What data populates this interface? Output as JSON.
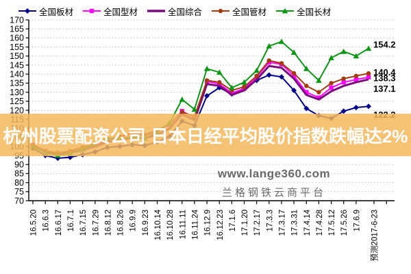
{
  "banner": {
    "text": "杭州股票配资公司 日本日经平均股价指数跌幅达2%",
    "bg_color": "rgba(243,184,88,0.84)"
  },
  "watermark": {
    "line1": "www.lange360.com",
    "line2": "兰格钢铁云商平台"
  },
  "chart_data": {
    "type": "line",
    "title": "",
    "xlabel": "",
    "ylabel": "",
    "ylim": [
      70,
      170
    ],
    "ytick_step": 5,
    "grid": "horizontal-dotted",
    "legend_position": "top",
    "prediction_label": "预测2017-6-23",
    "categories": [
      "16.5.20",
      "16.6.3",
      "16.6.17",
      "16.7.1",
      "16.7.15",
      "16.7.29",
      "16.8.12",
      "16.8.26",
      "16.9.9",
      "16.9.23",
      "16.10.14",
      "16.10.28",
      "16.11.11",
      "16.11.24",
      "16.12.9",
      "16.12.23",
      "17.1.6",
      "17.1.20",
      "17.2.17",
      "17.3.3",
      "17.3.17",
      "17.3.31",
      "17.4.14",
      "17.4.28",
      "17.5.12",
      "17.5.26",
      "17.6.9",
      "预测2017-6-23"
    ],
    "series": [
      {
        "name": "全国板材",
        "color": "#00008B",
        "marker": "diamond",
        "values": [
          99,
          95,
          93.5,
          94,
          95.5,
          97,
          99.5,
          100,
          101,
          100.5,
          102.5,
          105.5,
          114,
          111.5,
          128,
          132.5,
          129,
          132,
          136.5,
          139.5,
          138.5,
          131,
          121,
          117,
          115.5,
          119.5,
          121.5,
          122.2
        ]
      },
      {
        "name": "全国型材",
        "color": "#FF00FF",
        "marker": "square",
        "values": [
          101,
          97.5,
          96,
          97,
          98.5,
          100.5,
          103.5,
          105,
          107,
          106,
          108.5,
          112,
          119.5,
          116,
          136,
          134.5,
          129.5,
          132,
          138.5,
          146.5,
          145.5,
          139,
          130,
          127,
          132.5,
          135.5,
          137,
          138.3
        ]
      },
      {
        "name": "全国综合",
        "color": "#7B0A7B",
        "marker": "none",
        "values": [
          100.5,
          97,
          95.5,
          96.5,
          98,
          100,
          102.5,
          103.5,
          105,
          104.5,
          106.5,
          110,
          118,
          114.5,
          134.5,
          133.5,
          128.5,
          131,
          137,
          144.5,
          143.5,
          137.5,
          128.5,
          126,
          130.5,
          133.5,
          135.5,
          137.1
        ]
      },
      {
        "name": "全国管材",
        "color": "#A23B12",
        "marker": "circle",
        "values": [
          100.5,
          97.5,
          96.5,
          97.5,
          99.5,
          101.5,
          104,
          105.5,
          107.5,
          106.5,
          109,
          112.5,
          119,
          116.5,
          136.5,
          135.5,
          131,
          133,
          139,
          147.5,
          146,
          140.5,
          133.5,
          130,
          135,
          137.5,
          139,
          140.4
        ]
      },
      {
        "name": "全国长材",
        "color": "#0B9613",
        "marker": "triangle",
        "values": [
          100,
          96.5,
          95,
          96,
          98.5,
          101.5,
          104.5,
          104,
          105.5,
          104.5,
          108,
          113,
          126,
          120.5,
          143,
          141,
          132.5,
          135.5,
          142,
          155.5,
          158,
          152,
          143,
          136.5,
          149,
          152.5,
          150,
          154.2
        ]
      }
    ],
    "end_labels": [
      {
        "series": "全国长材",
        "value": "154.2"
      },
      {
        "series": "全国管材",
        "value": "140.4"
      },
      {
        "series": "全国型材",
        "value": "138.3"
      },
      {
        "series": "全国综合",
        "value": "137.1"
      },
      {
        "series": "全国板材",
        "value": "122.2"
      }
    ]
  }
}
